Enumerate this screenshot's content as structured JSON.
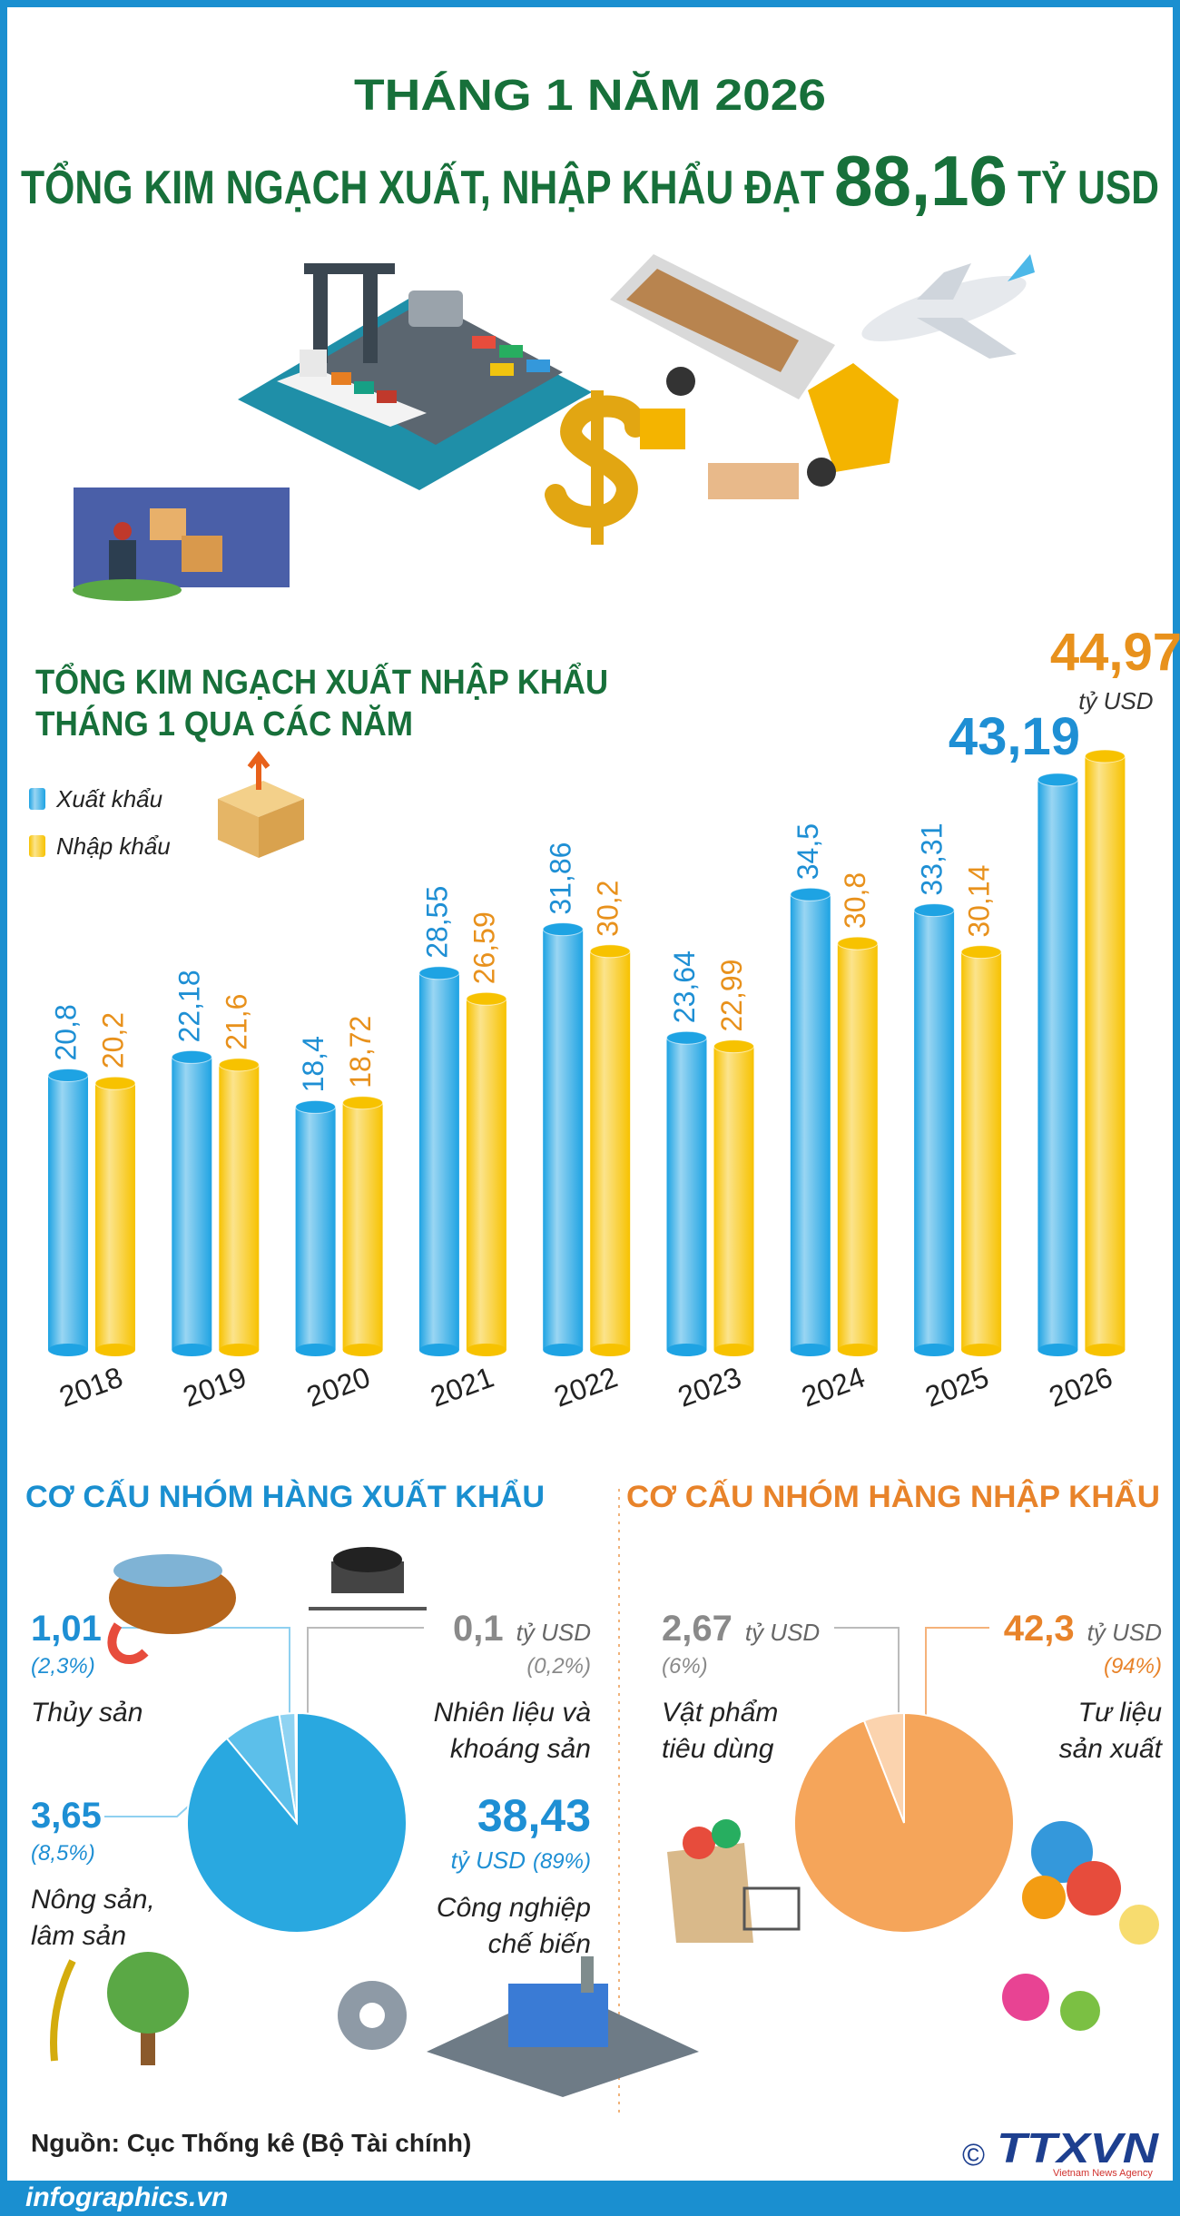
{
  "header": {
    "subtitle": "THÁNG 1 NĂM 2026",
    "title": "TỔNG KIM NGẠCH XUẤT, NHẬP KHẨU ĐẠT",
    "title_value": "88,16",
    "title_unit": "TỶ USD"
  },
  "chart_data": [
    {
      "type": "bar",
      "title": [
        "TỔNG KIM NGẠCH XUẤT NHẬP KHẨU",
        "THÁNG 1 QUA CÁC NĂM"
      ],
      "unit": "tỷ USD",
      "categories": [
        "2018",
        "2019",
        "2020",
        "2021",
        "2022",
        "2023",
        "2024",
        "2025",
        "2026"
      ],
      "series": [
        {
          "name": "Xuất khẩu",
          "color": "#1ea3e3",
          "values": [
            20.8,
            22.18,
            18.4,
            28.55,
            31.86,
            23.64,
            34.5,
            33.31,
            43.19
          ],
          "value_labels": [
            "20,8",
            "22,18",
            "18,4",
            "28,55",
            "31,86",
            "23,64",
            "34,5",
            "33,31",
            "43,19"
          ]
        },
        {
          "name": "Nhập khẩu",
          "color": "#f7c200",
          "values": [
            20.2,
            21.6,
            18.72,
            26.59,
            30.2,
            22.99,
            30.8,
            30.14,
            44.97
          ],
          "value_labels": [
            "20,2",
            "21,6",
            "18,72",
            "26,59",
            "30,2",
            "22,99",
            "30,8",
            "30,14",
            "44,97"
          ]
        }
      ],
      "legend": "top-left"
    },
    {
      "type": "pie",
      "title": "CƠ CẤU NHÓM HÀNG XUẤT KHẨU",
      "unit": "tỷ USD",
      "categories": [
        "Nhiên liệu và khoáng sản",
        "Thủy sản",
        "Nông sản, lâm sản",
        "Công nghiệp chế biến"
      ],
      "values": [
        0.1,
        1.01,
        3.65,
        38.43
      ],
      "value_labels": [
        "0,1",
        "1,01",
        "3,65",
        "38,43"
      ],
      "percents": [
        0.2,
        2.3,
        8.5,
        89
      ],
      "percent_labels": [
        "(0,2%)",
        "(2,3%)",
        "(8,5%)",
        "(89%)"
      ],
      "colors": [
        "#c9e9f8",
        "#8fd3f2",
        "#5cbfea",
        "#29a8e0"
      ]
    },
    {
      "type": "pie",
      "title": "CƠ CẤU NHÓM HÀNG NHẬP KHẨU",
      "unit": "tỷ USD",
      "categories": [
        "Vật phẩm tiêu dùng",
        "Tư liệu sản xuất"
      ],
      "values": [
        2.67,
        42.3
      ],
      "value_labels": [
        "2,67",
        "42,3"
      ],
      "percents": [
        6,
        94
      ],
      "percent_labels": [
        "(6%)",
        "(94%)"
      ],
      "colors": [
        "#fbd3ae",
        "#f5a55a"
      ]
    }
  ],
  "source": "Nguồn: Cục Thống kê (Bộ Tài chính)",
  "footer": {
    "website": "infographics.vn",
    "copyright": "©",
    "agency": "TTXVN",
    "agency_subtitle": "Vietnam News Agency"
  }
}
